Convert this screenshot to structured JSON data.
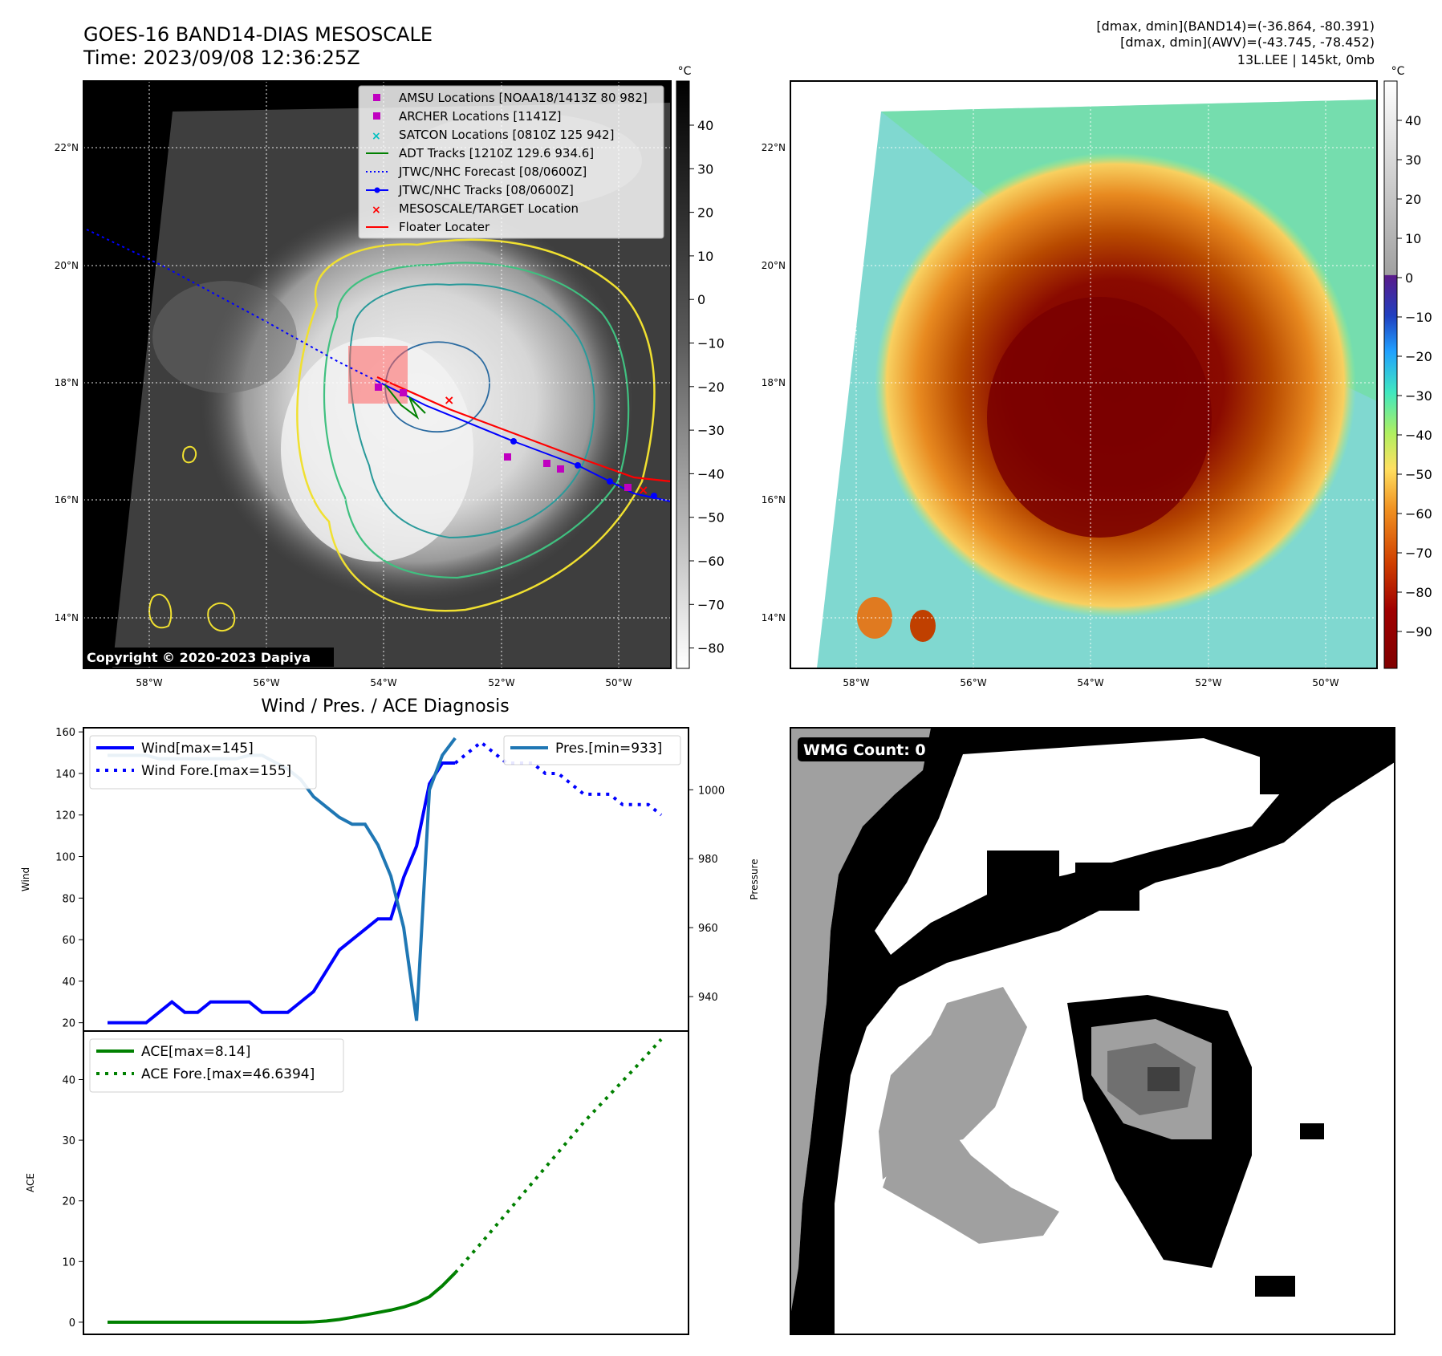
{
  "header": {
    "title_line1": "GOES-16 BAND14-DIAS MESOSCALE",
    "title_line2": "Time: 2023/09/08 12:36:25Z",
    "stats_line1": "[dmax, dmin](BAND14)=(-36.864, -80.391)",
    "stats_line2": "[dmax, dmin](AWV)=(-43.745, -78.452)",
    "stats_line3": "13L.LEE | 145kt, 0mb"
  },
  "copyright": "Copyright © 2020-2023 Dapiya",
  "wmg_label": "WMG Count: 0",
  "lon_labels": [
    "58°W",
    "56°W",
    "54°W",
    "52°W",
    "50°W"
  ],
  "lat_labels": [
    "22°N",
    "20°N",
    "18°N",
    "16°N",
    "14°N"
  ],
  "colorbar_unit": "°C",
  "colorbar1_ticks": [
    "40",
    "30",
    "20",
    "10",
    "0",
    "−10",
    "−20",
    "−30",
    "−40",
    "−50",
    "−60",
    "−70",
    "−80"
  ],
  "colorbar2_ticks": [
    "40",
    "30",
    "20",
    "10",
    "0",
    "−10",
    "−20",
    "−30",
    "−40",
    "−50",
    "−60",
    "−70",
    "−80",
    "−90"
  ],
  "colors": {
    "wind": "#0000ff",
    "pres": "#1f77b4",
    "ace": "#008000",
    "track_red": "#ff0000",
    "magenta": "#c000c0",
    "cyan": "#00c0c0"
  },
  "legend_map": [
    {
      "label": "AMSU Locations [NOAA18/1413Z 80 982]",
      "marker": "square",
      "color": "#c000c0"
    },
    {
      "label": "ARCHER Locations [1141Z]",
      "marker": "square",
      "color": "#c000c0"
    },
    {
      "label": "SATCON Locations [0810Z 125 942]",
      "marker": "x",
      "color": "#00c0c0"
    },
    {
      "label": "ADT Tracks [1210Z 129.6 934.6]",
      "marker": "line",
      "color": "#008000"
    },
    {
      "label": "JTWC/NHC Forecast [08/0600Z]",
      "marker": "dotted",
      "color": "#0000ff"
    },
    {
      "label": "JTWC/NHC Tracks [08/0600Z]",
      "marker": "linedot",
      "color": "#0000ff"
    },
    {
      "label": "MESOSCALE/TARGET Location",
      "marker": "x",
      "color": "#ff0000"
    },
    {
      "label": "Floater Locater",
      "marker": "line",
      "color": "#ff0000"
    }
  ],
  "chart_data": [
    {
      "type": "line",
      "title": "Wind / Pres. / ACE Diagnosis",
      "ylabel": "Wind",
      "y2label": "Pressure",
      "ylim": [
        16,
        162
      ],
      "y2lim": [
        930,
        1018
      ],
      "yticks": [
        20,
        40,
        60,
        80,
        100,
        120,
        140,
        160
      ],
      "y2ticks": [
        940,
        960,
        980,
        1000
      ],
      "series": [
        {
          "name": "Wind[max=145]",
          "style": "solid",
          "color": "#0000ff",
          "x": [
            0,
            1,
            2,
            3,
            4,
            5,
            6,
            7,
            8,
            9,
            10,
            11,
            12,
            13,
            14,
            15,
            16,
            17,
            18,
            19,
            20,
            21,
            22,
            23,
            24,
            25,
            26,
            27
          ],
          "values": [
            20,
            20,
            20,
            20,
            25,
            30,
            25,
            25,
            30,
            30,
            30,
            30,
            25,
            25,
            25,
            30,
            35,
            45,
            55,
            60,
            65,
            70,
            70,
            90,
            105,
            135,
            145,
            145
          ]
        },
        {
          "name": "Wind Fore.[max=155]",
          "style": "dotted",
          "color": "#0000ff",
          "x": [
            27,
            28,
            29,
            30,
            31,
            32,
            33,
            34,
            35,
            36,
            37,
            38,
            39,
            40,
            41,
            42,
            43
          ],
          "values": [
            145,
            150,
            155,
            150,
            145,
            145,
            145,
            140,
            140,
            135,
            130,
            130,
            130,
            125,
            125,
            125,
            120
          ]
        },
        {
          "name": "Pres.[min=933]",
          "axis": "right",
          "style": "solid",
          "color": "#1f77b4",
          "x": [
            0,
            1,
            2,
            3,
            4,
            5,
            6,
            7,
            8,
            9,
            10,
            11,
            12,
            13,
            14,
            15,
            16,
            17,
            18,
            19,
            20,
            21,
            22,
            23,
            24,
            25,
            26,
            27
          ],
          "values": [
            1010,
            1010,
            1010,
            1010,
            1009,
            1009,
            1009,
            1009,
            1009,
            1009,
            1009,
            1010,
            1010,
            1008,
            1006,
            1003,
            998,
            995,
            992,
            990,
            990,
            984,
            975,
            960,
            933,
            1000,
            1010,
            1015
          ]
        }
      ]
    },
    {
      "type": "line",
      "ylabel": "ACE",
      "ylim": [
        -2,
        48
      ],
      "yticks": [
        0,
        10,
        20,
        30,
        40
      ],
      "series": [
        {
          "name": "ACE[max=8.14]",
          "style": "solid",
          "color": "#008000",
          "x": [
            0,
            3,
            6,
            9,
            12,
            15,
            16,
            17,
            18,
            19,
            20,
            21,
            22,
            23,
            24,
            25,
            26,
            27
          ],
          "values": [
            0,
            0,
            0,
            0,
            0,
            0,
            0.05,
            0.2,
            0.45,
            0.8,
            1.2,
            1.6,
            2.0,
            2.5,
            3.2,
            4.2,
            6.0,
            8.14
          ]
        },
        {
          "name": "ACE Fore.[max=46.6394]",
          "style": "dotted",
          "color": "#008000",
          "x": [
            27,
            29,
            31,
            33,
            35,
            37,
            39,
            41,
            43
          ],
          "values": [
            8.14,
            13,
            18,
            23,
            28,
            33,
            37.5,
            42,
            46.64
          ]
        }
      ]
    }
  ]
}
